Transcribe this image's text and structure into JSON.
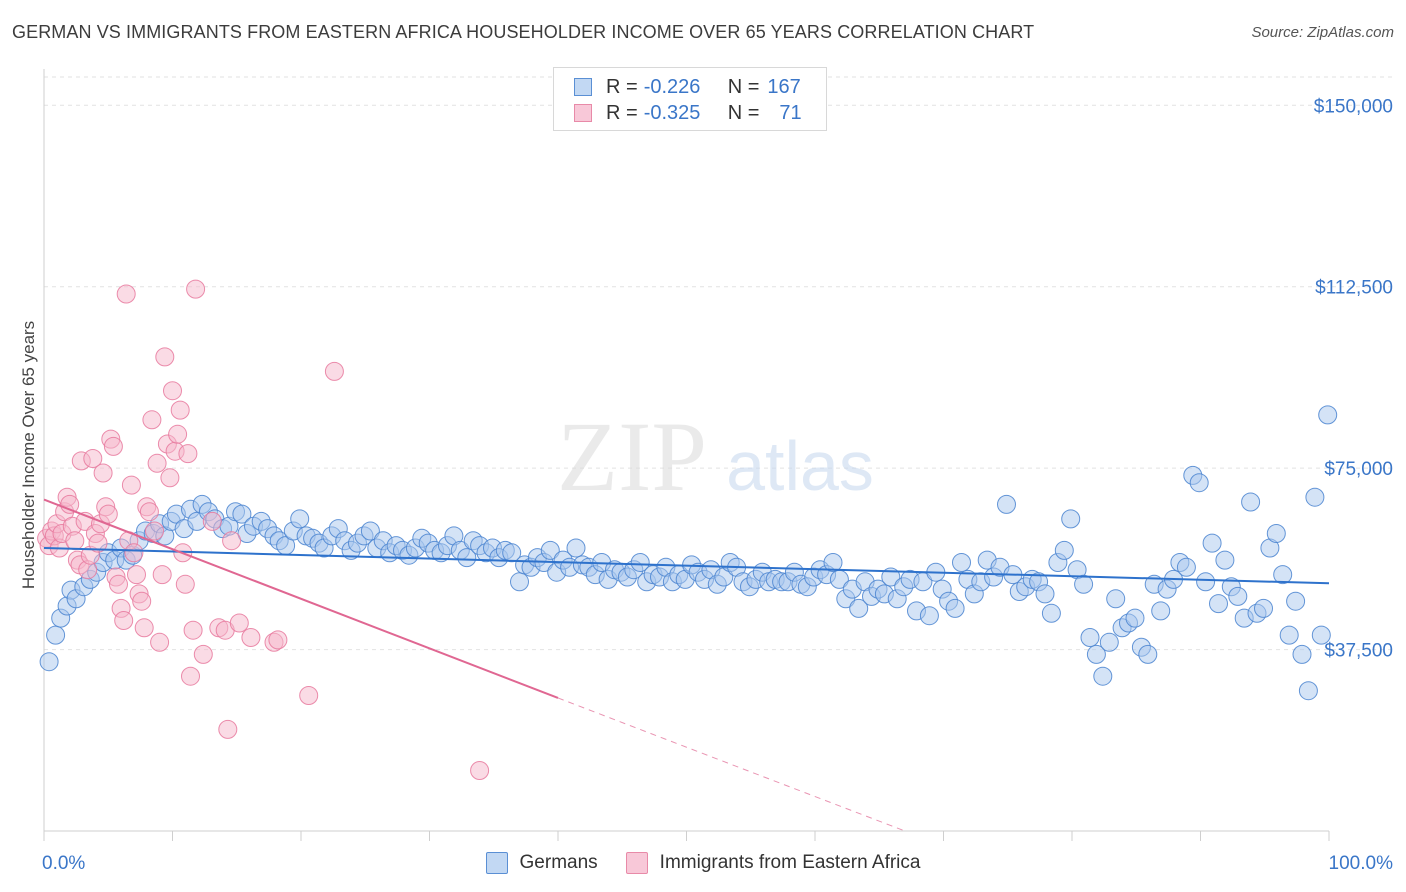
{
  "header": {
    "title": "GERMAN VS IMMIGRANTS FROM EASTERN AFRICA HOUSEHOLDER INCOME OVER 65 YEARS CORRELATION CHART",
    "source": "Source: ZipAtlas.com"
  },
  "watermark": {
    "zip": "ZIP",
    "atlas": "atlas"
  },
  "colors": {
    "blue_fill": "#a9c8ee",
    "blue_stroke": "#4a84d0",
    "blue_line": "#2e72cc",
    "pink_fill": "#f5b7cb",
    "pink_stroke": "#e8799e",
    "pink_line": "#e06792",
    "axis_label": "#3a76c8"
  },
  "legend": {
    "rows": [
      {
        "r_label": "R = ",
        "r_value": "-0.226",
        "n_label": "N = ",
        "n_value": "167"
      },
      {
        "r_label": "R = ",
        "r_value": "-0.325",
        "n_label": "N = ",
        "n_value": "71"
      }
    ]
  },
  "series_legend": [
    "Germans",
    "Immigrants from Eastern Africa"
  ],
  "chart_data": {
    "type": "scatter",
    "title": "GERMAN VS IMMIGRANTS FROM EASTERN AFRICA HOUSEHOLDER INCOME OVER 65 YEARS CORRELATION CHART",
    "ylabel": "Householder Income Over 65 years",
    "xlim": [
      0,
      100
    ],
    "ylim": [
      0,
      157500
    ],
    "x_tick_labels": [
      "0.0%",
      "100.0%"
    ],
    "y_ticks": [
      {
        "value": 37500,
        "label": "$37,500"
      },
      {
        "value": 75000,
        "label": "$75,000"
      },
      {
        "value": 112500,
        "label": "$112,500"
      },
      {
        "value": 150000,
        "label": "$150,000"
      }
    ],
    "grid": "horizontal dashed",
    "series": [
      {
        "name": "Germans",
        "trend": {
          "x0": 0,
          "y0": 58500,
          "x1": 100,
          "y1": 51200
        },
        "points": [
          [
            0.4,
            35000
          ],
          [
            0.9,
            40500
          ],
          [
            1.3,
            44000
          ],
          [
            1.8,
            46500
          ],
          [
            2.1,
            49800
          ],
          [
            2.5,
            48000
          ],
          [
            3.1,
            50500
          ],
          [
            3.6,
            52000
          ],
          [
            4.1,
            53500
          ],
          [
            4.6,
            55500
          ],
          [
            5.0,
            57500
          ],
          [
            5.5,
            56000
          ],
          [
            6.0,
            58500
          ],
          [
            6.4,
            56000
          ],
          [
            6.9,
            57000
          ],
          [
            7.4,
            60000
          ],
          [
            7.9,
            62000
          ],
          [
            8.5,
            61500
          ],
          [
            9.0,
            63500
          ],
          [
            9.4,
            61000
          ],
          [
            9.9,
            64000
          ],
          [
            10.3,
            65500
          ],
          [
            10.9,
            62500
          ],
          [
            11.4,
            66500
          ],
          [
            11.9,
            64000
          ],
          [
            12.3,
            67500
          ],
          [
            12.8,
            66000
          ],
          [
            13.3,
            64500
          ],
          [
            13.9,
            62500
          ],
          [
            14.4,
            63000
          ],
          [
            14.9,
            66000
          ],
          [
            15.4,
            65500
          ],
          [
            15.8,
            61500
          ],
          [
            16.3,
            63000
          ],
          [
            16.9,
            64000
          ],
          [
            17.4,
            62500
          ],
          [
            17.9,
            61000
          ],
          [
            18.3,
            60000
          ],
          [
            18.8,
            59000
          ],
          [
            19.4,
            62000
          ],
          [
            19.9,
            64500
          ],
          [
            20.4,
            61000
          ],
          [
            20.9,
            60500
          ],
          [
            21.4,
            59500
          ],
          [
            21.8,
            58500
          ],
          [
            22.4,
            61000
          ],
          [
            22.9,
            62500
          ],
          [
            23.4,
            60000
          ],
          [
            23.9,
            58000
          ],
          [
            24.4,
            59500
          ],
          [
            24.9,
            61000
          ],
          [
            25.4,
            62000
          ],
          [
            25.9,
            58500
          ],
          [
            26.4,
            60000
          ],
          [
            26.9,
            57500
          ],
          [
            27.4,
            59000
          ],
          [
            27.9,
            58000
          ],
          [
            28.4,
            57000
          ],
          [
            28.9,
            58500
          ],
          [
            29.4,
            60500
          ],
          [
            29.9,
            59500
          ],
          [
            30.4,
            58000
          ],
          [
            30.9,
            57500
          ],
          [
            31.4,
            59000
          ],
          [
            31.9,
            61000
          ],
          [
            32.4,
            58000
          ],
          [
            32.9,
            56500
          ],
          [
            33.4,
            60000
          ],
          [
            33.9,
            59000
          ],
          [
            34.4,
            57500
          ],
          [
            34.9,
            58500
          ],
          [
            35.4,
            56500
          ],
          [
            35.9,
            58000
          ],
          [
            36.4,
            57500
          ],
          [
            37.0,
            51500
          ],
          [
            37.4,
            55000
          ],
          [
            37.9,
            54500
          ],
          [
            38.4,
            56500
          ],
          [
            38.9,
            55500
          ],
          [
            39.4,
            58000
          ],
          [
            39.9,
            53500
          ],
          [
            40.4,
            56000
          ],
          [
            40.9,
            54500
          ],
          [
            41.4,
            58500
          ],
          [
            41.9,
            55000
          ],
          [
            42.4,
            54500
          ],
          [
            42.9,
            53000
          ],
          [
            43.4,
            55500
          ],
          [
            43.9,
            52000
          ],
          [
            44.4,
            54000
          ],
          [
            44.9,
            53500
          ],
          [
            45.4,
            52500
          ],
          [
            45.9,
            54000
          ],
          [
            46.4,
            55500
          ],
          [
            46.9,
            51500
          ],
          [
            47.4,
            53000
          ],
          [
            47.9,
            52500
          ],
          [
            48.4,
            54500
          ],
          [
            48.9,
            51500
          ],
          [
            49.4,
            53000
          ],
          [
            49.9,
            52000
          ],
          [
            50.4,
            55000
          ],
          [
            50.9,
            53500
          ],
          [
            51.4,
            52000
          ],
          [
            51.9,
            54000
          ],
          [
            52.4,
            51000
          ],
          [
            52.9,
            52500
          ],
          [
            53.4,
            55500
          ],
          [
            53.9,
            54500
          ],
          [
            54.4,
            51500
          ],
          [
            54.9,
            50500
          ],
          [
            55.4,
            52000
          ],
          [
            55.9,
            53500
          ],
          [
            56.4,
            51500
          ],
          [
            56.9,
            52000
          ],
          [
            57.4,
            51500
          ],
          [
            57.9,
            51500
          ],
          [
            58.4,
            53500
          ],
          [
            58.9,
            51000
          ],
          [
            59.4,
            50500
          ],
          [
            59.9,
            52500
          ],
          [
            60.4,
            54000
          ],
          [
            60.9,
            53000
          ],
          [
            61.4,
            55500
          ],
          [
            61.9,
            52000
          ],
          [
            62.4,
            48000
          ],
          [
            62.9,
            50000
          ],
          [
            63.4,
            46000
          ],
          [
            63.9,
            51500
          ],
          [
            64.4,
            48500
          ],
          [
            64.9,
            50000
          ],
          [
            65.4,
            49000
          ],
          [
            65.9,
            52500
          ],
          [
            66.4,
            48000
          ],
          [
            66.9,
            50500
          ],
          [
            67.4,
            52000
          ],
          [
            67.9,
            45500
          ],
          [
            68.4,
            51500
          ],
          [
            68.9,
            44500
          ],
          [
            69.4,
            53500
          ],
          [
            69.9,
            50000
          ],
          [
            70.4,
            47500
          ],
          [
            70.9,
            46000
          ],
          [
            71.4,
            55500
          ],
          [
            71.9,
            52000
          ],
          [
            72.4,
            49000
          ],
          [
            72.9,
            51500
          ],
          [
            73.4,
            56000
          ],
          [
            73.9,
            52500
          ],
          [
            74.4,
            54500
          ],
          [
            74.9,
            67500
          ],
          [
            75.4,
            53000
          ],
          [
            75.9,
            49500
          ],
          [
            76.4,
            50500
          ],
          [
            76.9,
            52000
          ],
          [
            77.4,
            51500
          ],
          [
            77.9,
            49000
          ],
          [
            78.4,
            45000
          ],
          [
            78.9,
            55500
          ],
          [
            79.4,
            58000
          ],
          [
            79.9,
            64500
          ],
          [
            80.4,
            54000
          ],
          [
            80.9,
            51000
          ],
          [
            81.4,
            40000
          ],
          [
            81.9,
            36500
          ],
          [
            82.4,
            32000
          ],
          [
            82.9,
            39000
          ],
          [
            83.4,
            48000
          ],
          [
            83.9,
            42000
          ],
          [
            84.4,
            43000
          ],
          [
            84.9,
            44000
          ],
          [
            85.4,
            38000
          ],
          [
            85.9,
            36500
          ],
          [
            86.4,
            51000
          ],
          [
            86.9,
            45500
          ],
          [
            87.4,
            50000
          ],
          [
            87.9,
            52000
          ],
          [
            88.4,
            55500
          ],
          [
            88.9,
            54500
          ],
          [
            89.4,
            73500
          ],
          [
            89.9,
            72000
          ],
          [
            90.4,
            51500
          ],
          [
            90.9,
            59500
          ],
          [
            91.4,
            47000
          ],
          [
            91.9,
            56000
          ],
          [
            92.4,
            50500
          ],
          [
            92.9,
            48500
          ],
          [
            93.4,
            44000
          ],
          [
            93.9,
            68000
          ],
          [
            94.4,
            45000
          ],
          [
            94.9,
            46000
          ],
          [
            95.4,
            58500
          ],
          [
            95.9,
            61500
          ],
          [
            96.4,
            53000
          ],
          [
            96.9,
            40500
          ],
          [
            97.4,
            47500
          ],
          [
            97.9,
            36500
          ],
          [
            98.4,
            29000
          ],
          [
            98.9,
            69000
          ],
          [
            99.4,
            40500
          ],
          [
            99.9,
            86000
          ]
        ]
      },
      {
        "name": "Immigrants from Eastern Africa",
        "trend": {
          "x0": 0,
          "y0": 68500,
          "x1": 40,
          "y1": 27500,
          "dash_to_x": 67,
          "dash_to_y": 0
        },
        "points": [
          [
            0.2,
            60500
          ],
          [
            0.4,
            59000
          ],
          [
            0.6,
            62000
          ],
          [
            0.8,
            61000
          ],
          [
            1.0,
            63500
          ],
          [
            1.2,
            58500
          ],
          [
            1.4,
            61500
          ],
          [
            1.6,
            66000
          ],
          [
            1.8,
            69000
          ],
          [
            2.0,
            67500
          ],
          [
            2.2,
            63000
          ],
          [
            2.4,
            60000
          ],
          [
            2.6,
            56000
          ],
          [
            2.8,
            55000
          ],
          [
            2.9,
            76500
          ],
          [
            3.2,
            64000
          ],
          [
            3.4,
            54000
          ],
          [
            3.6,
            57000
          ],
          [
            3.8,
            77000
          ],
          [
            4.0,
            61500
          ],
          [
            4.2,
            59500
          ],
          [
            4.4,
            63500
          ],
          [
            4.6,
            74000
          ],
          [
            4.8,
            67000
          ],
          [
            5.0,
            65500
          ],
          [
            5.2,
            81000
          ],
          [
            5.4,
            79500
          ],
          [
            5.6,
            52500
          ],
          [
            5.8,
            51000
          ],
          [
            6.0,
            46000
          ],
          [
            6.2,
            43500
          ],
          [
            6.4,
            111000
          ],
          [
            6.6,
            60000
          ],
          [
            6.8,
            71500
          ],
          [
            7.0,
            57500
          ],
          [
            7.2,
            53000
          ],
          [
            7.4,
            49000
          ],
          [
            7.6,
            47500
          ],
          [
            7.8,
            42000
          ],
          [
            8.0,
            67000
          ],
          [
            8.2,
            66000
          ],
          [
            8.4,
            85000
          ],
          [
            8.6,
            62000
          ],
          [
            8.8,
            76000
          ],
          [
            9.0,
            39000
          ],
          [
            9.2,
            53000
          ],
          [
            9.4,
            98000
          ],
          [
            9.6,
            80000
          ],
          [
            9.8,
            73000
          ],
          [
            10.0,
            91000
          ],
          [
            10.2,
            78500
          ],
          [
            10.4,
            82000
          ],
          [
            10.6,
            87000
          ],
          [
            10.8,
            57500
          ],
          [
            11.0,
            51000
          ],
          [
            11.2,
            78000
          ],
          [
            11.4,
            32000
          ],
          [
            11.6,
            41500
          ],
          [
            11.8,
            112000
          ],
          [
            12.4,
            36500
          ],
          [
            13.1,
            64000
          ],
          [
            13.6,
            42000
          ],
          [
            14.1,
            41500
          ],
          [
            14.3,
            21000
          ],
          [
            14.6,
            60000
          ],
          [
            15.2,
            43000
          ],
          [
            16.1,
            40000
          ],
          [
            17.9,
            39000
          ],
          [
            18.2,
            39500
          ],
          [
            20.6,
            28000
          ],
          [
            22.6,
            95000
          ],
          [
            33.9,
            12500
          ]
        ]
      }
    ]
  }
}
